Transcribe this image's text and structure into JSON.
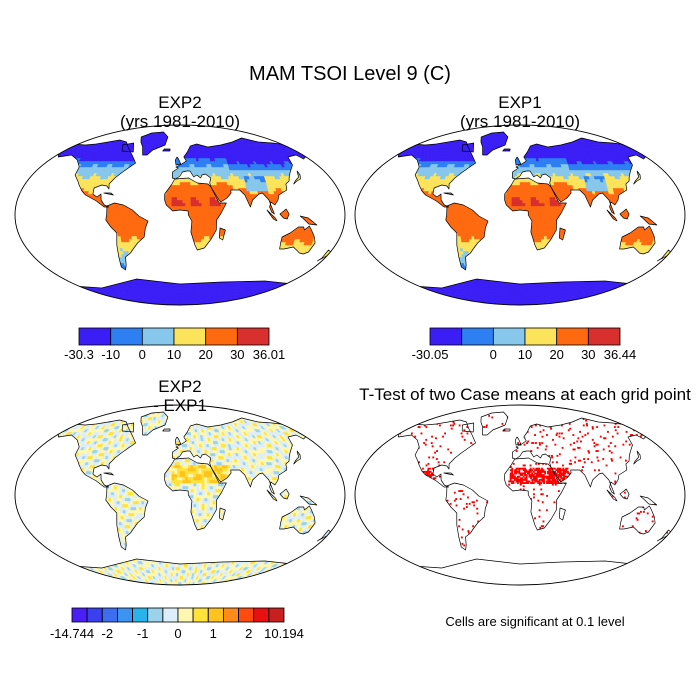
{
  "chart_data": {
    "type": "heatmap",
    "title": "MAM TSOI Level 9 (C)",
    "panels": [
      {
        "id": "exp2",
        "title": [
          "EXP2",
          "(yrs 1981-2010)"
        ],
        "palette": [
          "#3b1ef5",
          "#2d7ff2",
          "#86c7eb",
          "#fbe35a",
          "#ff6a10",
          "#d82f2f"
        ],
        "colorbar_labels": [
          "-30.3",
          "-10",
          "0",
          "10",
          "20",
          "30",
          "36.01"
        ],
        "colorbar_values": [
          -30.3,
          -10,
          0,
          10,
          20,
          30,
          36.01
        ]
      },
      {
        "id": "exp1",
        "title": [
          "EXP1",
          "(yrs 1981-2010)"
        ],
        "palette": [
          "#3b1ef5",
          "#2d7ff2",
          "#86c7eb",
          "#fbe35a",
          "#ff6a10",
          "#d82f2f"
        ],
        "colorbar_labels": [
          "-30.05",
          "",
          "0",
          "10",
          "20",
          "30",
          "36.44"
        ],
        "colorbar_values": [
          -30.05,
          -10,
          0,
          10,
          20,
          30,
          36.44
        ]
      },
      {
        "id": "diff",
        "title": [
          "EXP2",
          "- EXP1"
        ],
        "palette": [
          "#4a1ff5",
          "#3a40f0",
          "#3d6ef0",
          "#3a94f0",
          "#29b3ea",
          "#9ad3ea",
          "#dceefa",
          "#fff7b0",
          "#ffe23a",
          "#ffc31f",
          "#ff8c1a",
          "#ff4a10",
          "#e81010",
          "#c82020"
        ],
        "colorbar_labels": [
          "-14.744",
          "-2",
          "-1",
          "0",
          "1",
          "2",
          "10.194"
        ],
        "colorbar_values": [
          -14.744,
          -2,
          -1,
          0,
          1,
          2,
          10.194
        ]
      },
      {
        "id": "ttest",
        "title": [
          "T-Test of two Case means at each grid point"
        ],
        "note": "Cells are significant at 0.1 level",
        "significant_color": "#ff0000"
      }
    ]
  }
}
